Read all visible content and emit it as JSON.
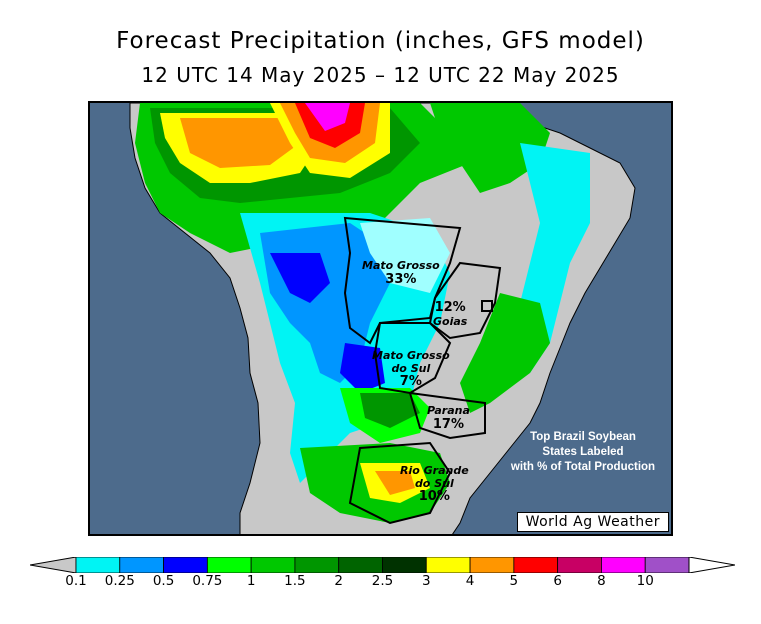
{
  "title": "Forecast Precipitation (inches, GFS model)",
  "subtitle": "12 UTC 14 May 2025 – 12 UTC 22 May 2025",
  "credit": "World Ag Weather",
  "note": [
    "Top Brazil Soybean",
    "States Labeled",
    "with % of Total Production"
  ],
  "states": [
    {
      "name": "Mato Grosso",
      "pct": "33%"
    },
    {
      "name": "Goias",
      "pct": "12%"
    },
    {
      "name": "Mato Grosso do Sul",
      "name_lines": [
        "Mato Grosso",
        "do Sul"
      ],
      "pct": "7%"
    },
    {
      "name": "Parana",
      "pct": "17%"
    },
    {
      "name": "Rio Grande do Sul",
      "name_lines": [
        "Rio Grande",
        "do Sul"
      ],
      "pct": "10%"
    }
  ],
  "colorbar": {
    "under_color": "#c8c8c8",
    "over_color": "#ffffff",
    "bins": [
      "#00f4f4",
      "#0096ff",
      "#0000ff",
      "#00ff00",
      "#00c800",
      "#009600",
      "#006400",
      "#003200",
      "#ffff00",
      "#ff9600",
      "#ff0000",
      "#c80064",
      "#ff00ff",
      "#a050c8"
    ],
    "ticks": [
      "0.1",
      "0.25",
      "0.5",
      "0.75",
      "1",
      "1.5",
      "2",
      "2.5",
      "3",
      "4",
      "5",
      "6",
      "8",
      "10"
    ]
  },
  "colors": {
    "ocean": "#4d6b8c",
    "land_dry": "#c8c8c8"
  }
}
